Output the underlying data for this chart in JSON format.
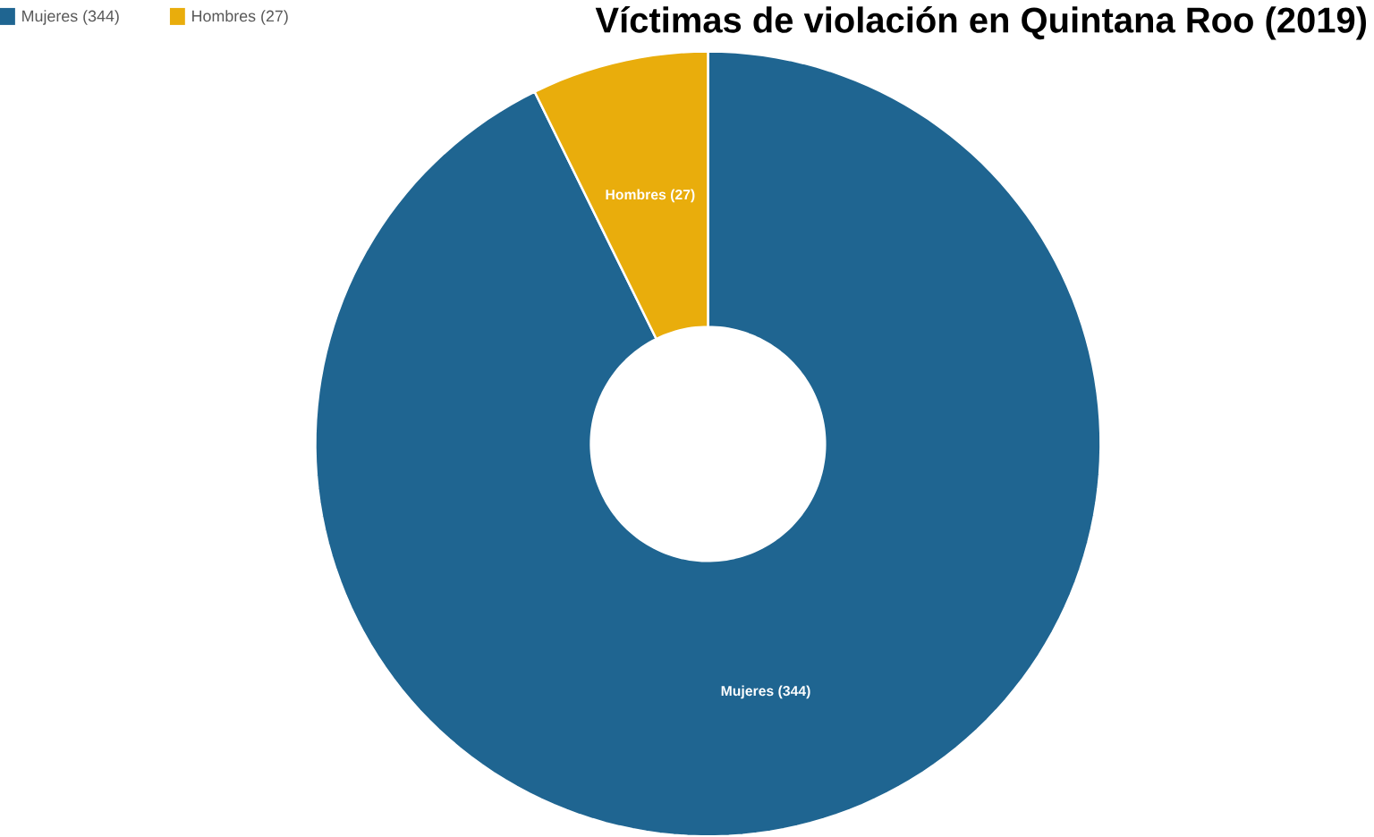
{
  "chart_data": {
    "type": "donut",
    "title": "Víctimas de violación en Quintana Roo (2019)",
    "categories": [
      "Mujeres (344)",
      "Hombres (27)"
    ],
    "values": [
      344,
      27
    ],
    "colors": [
      "#1f6591",
      "#e9ad0c"
    ],
    "legend": "top left"
  }
}
